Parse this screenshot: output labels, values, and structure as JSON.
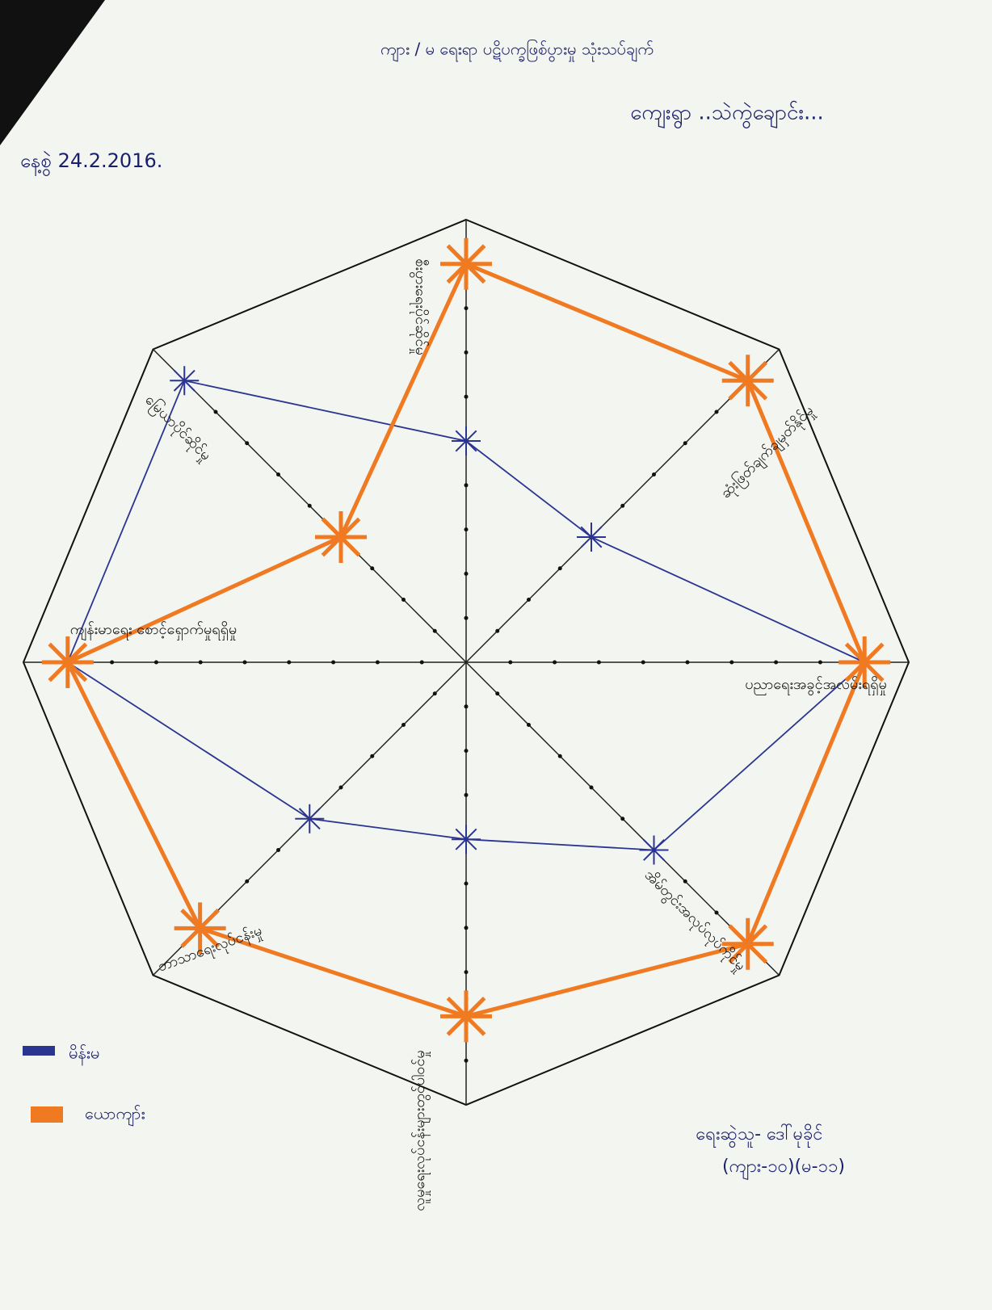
{
  "title": "ကျား / မ ရေးရာ ပဋိပက္ခဖြစ်ပွားမှု သုံးသပ်ချက်",
  "village": "ကျေးရွာ ..သဲကွဲချောင်း...",
  "date": "နေ့စွဲ 24.2.2016.",
  "author": "ရေးဆွဲသူ- ဒေါ်မုခိုင်",
  "author_note": "(ကျား-၁၀)(မ-၁၁)",
  "chart_data": {
    "type": "radar",
    "categories": [
      "စီးပွားရေးပိုင်ဆိုင်မှု",
      "ဆုံးဖြတ်ချက်ချမှတ်နိုင်မှု",
      "ပညာရေးအခွင့်အလမ်းရရှိမှု",
      "အိမ်တွင်းအလုပ်လုပ်ကိုင်မှု",
      "လူမှုရေးလုပ်ငန်းများတွင်ပါဝင်မှု",
      "ဘာသာရေးလုပ်ငန်းမှု",
      "ကျန်းမာရေး စောင့်ရှောက်မှုရရှိမှု",
      "မြေယာပိုင်ဆိုင်မှု"
    ],
    "series": [
      {
        "name": "မိန်းမ",
        "color": "#2b3590",
        "values": [
          5,
          4,
          9,
          6,
          4,
          5,
          9,
          9
        ]
      },
      {
        "name": "ယောကျာ်း",
        "color": "#f07a22",
        "values": [
          9,
          9,
          9,
          9,
          8,
          8.5,
          9,
          4
        ]
      }
    ],
    "ylim": [
      0,
      10
    ]
  }
}
